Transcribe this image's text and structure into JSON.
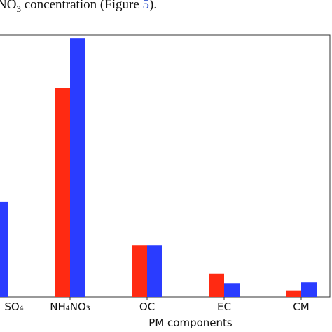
{
  "paper_text": {
    "parts": [
      "NO",
      "3",
      " concentration (Figure ",
      "5",
      ")."
    ]
  },
  "chart_data": {
    "type": "bar",
    "categories": [
      "SO₄",
      "NH₄NO₃",
      "OC",
      "EC",
      "CM"
    ],
    "xlabel": "PM components",
    "series": [
      {
        "color": "#ff2a12",
        "values": [
          null,
          287,
          71,
          32,
          9
        ]
      },
      {
        "color": "#2a3cff",
        "values": [
          131,
          356,
          71,
          19,
          20
        ]
      }
    ],
    "ylim": [
      0,
      360
    ]
  }
}
